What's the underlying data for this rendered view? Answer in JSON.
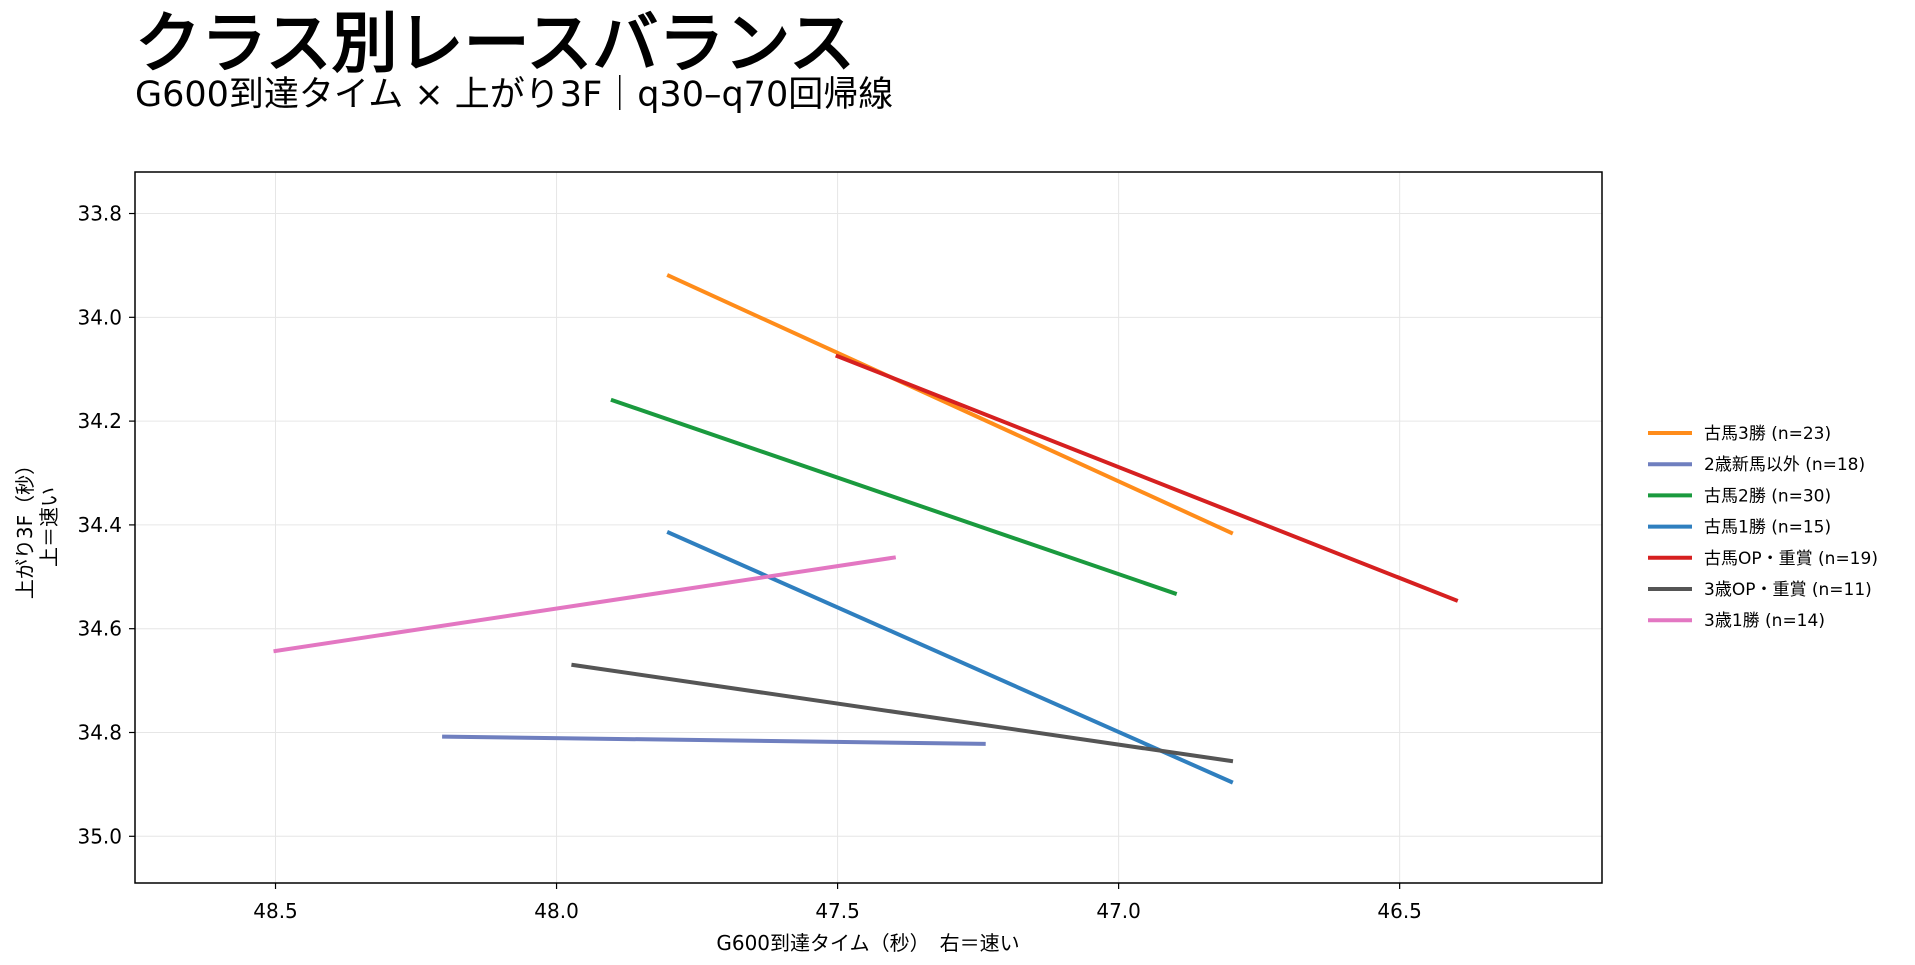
{
  "chart_data": {
    "type": "line",
    "title": "クラス別レースバランス",
    "subtitle": "G600到達タイム × 上がり3F｜q30–q70回帰線",
    "xlabel": "G600到達タイム（秒）　右＝速い",
    "ylabel": "上がり3F（秒）",
    "ylabel2": "上＝速い",
    "xlim": [
      48.75,
      46.14
    ],
    "ylim": [
      35.09,
      33.72
    ],
    "x_inverted": true,
    "y_inverted": true,
    "xticks": [
      48.5,
      48.0,
      47.5,
      47.0,
      46.5
    ],
    "yticks": [
      33.8,
      34.0,
      34.2,
      34.4,
      34.6,
      34.8,
      35.0
    ],
    "grid": true,
    "legend_position": "right",
    "series": [
      {
        "name": "古馬3勝 (n=23)",
        "color": "#ff8c1a",
        "x": [
          47.8,
          46.8
        ],
        "y": [
          33.92,
          34.415
        ]
      },
      {
        "name": "2歳新馬以外 (n=18)",
        "color": "#6f7fbf",
        "x": [
          48.2,
          47.24
        ],
        "y": [
          34.808,
          34.822
        ]
      },
      {
        "name": "古馬2勝 (n=30)",
        "color": "#1a9a3e",
        "x": [
          47.9,
          46.9
        ],
        "y": [
          34.16,
          34.532
        ]
      },
      {
        "name": "古馬1勝 (n=15)",
        "color": "#2f7fbf",
        "x": [
          47.8,
          46.8
        ],
        "y": [
          34.415,
          34.895
        ]
      },
      {
        "name": "古馬OP・重賞 (n=19)",
        "color": "#d62020",
        "x": [
          47.5,
          46.4
        ],
        "y": [
          34.075,
          34.545
        ]
      },
      {
        "name": "3歳OP・重賞 (n=11)",
        "color": "#555555",
        "x": [
          47.97,
          46.8
        ],
        "y": [
          34.67,
          34.855
        ]
      },
      {
        "name": "3歳1勝 (n=14)",
        "color": "#e377c2",
        "x": [
          48.5,
          47.4
        ],
        "y": [
          34.643,
          34.463
        ]
      }
    ]
  }
}
